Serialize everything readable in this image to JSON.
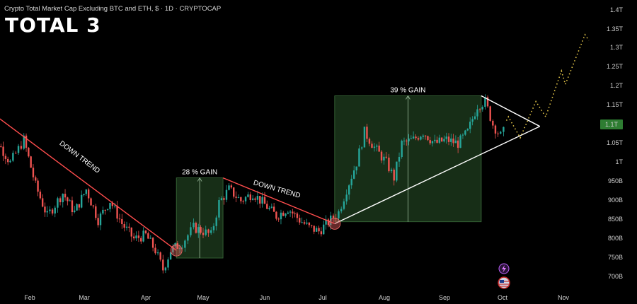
{
  "header": {
    "subtitle": "Crypto Total Market Cap Excluding BTC and ETH, $ · 1D · CRYPTOCAP",
    "title": "TOTAL 3"
  },
  "price_badge": "1.1T",
  "chart_data": {
    "type": "candlestick",
    "title": "TOTAL 3",
    "subtitle": "Crypto Total Market Cap Excluding BTC and ETH, $ · 1D · CRYPTOCAP",
    "x_ticks": [
      "Feb",
      "Mar",
      "Apr",
      "May",
      "Jun",
      "Jul",
      "Aug",
      "Sep",
      "Oct",
      "Nov"
    ],
    "y_ticks": [
      "1.4T",
      "1.35T",
      "1.3T",
      "1.25T",
      "1.2T",
      "1.15T",
      "1.1T",
      "1.05T",
      "1T",
      "950B",
      "900B",
      "850B",
      "800B",
      "750B",
      "700B"
    ],
    "ylim": [
      680,
      1410
    ],
    "current_value": "1.1T",
    "colors": {
      "up": "#26a69a",
      "down": "#ef5350",
      "trend": "#ff4d4d",
      "support": "#ffffff",
      "projection": "#e6c84a",
      "box": "#1f3d1f"
    },
    "annotations": [
      "DOWN TREND",
      "28 % GAIN",
      "DOWN TREND",
      "39 % GAIN"
    ],
    "trend_lines": [
      {
        "label": "DOWN TREND",
        "from": [
          "Jan 10",
          1140
        ],
        "to": [
          "Apr 17",
          770
        ]
      },
      {
        "label": "DOWN TREND",
        "from": [
          "May 11",
          960
        ],
        "to": [
          "Jul 7",
          840
        ]
      },
      {
        "label": "support",
        "from": [
          "Jul 7",
          840
        ],
        "to": [
          "Oct 20",
          1095
        ]
      },
      {
        "label": "resistance",
        "from": [
          "Sep 20",
          1175
        ],
        "to": [
          "Oct 20",
          1095
        ]
      }
    ],
    "gain_boxes": [
      {
        "label": "28 % GAIN",
        "from": "Apr 17",
        "to": "May 11",
        "low": 750,
        "high": 960
      },
      {
        "label": "39 % GAIN",
        "from": "Jul 7",
        "to": "Sep 20",
        "low": 845,
        "high": 1175
      }
    ],
    "projection": [
      [
        1110,
        "Oct 3"
      ],
      [
        1120,
        "Oct 4"
      ],
      [
        1065,
        "Oct 10"
      ],
      [
        1160,
        "Oct 18"
      ],
      [
        1120,
        "Oct 23"
      ],
      [
        1240,
        "Oct 31"
      ],
      [
        1205,
        "Nov 2"
      ],
      [
        1335,
        "Nov 12"
      ],
      [
        1320,
        "Nov 14"
      ]
    ]
  }
}
